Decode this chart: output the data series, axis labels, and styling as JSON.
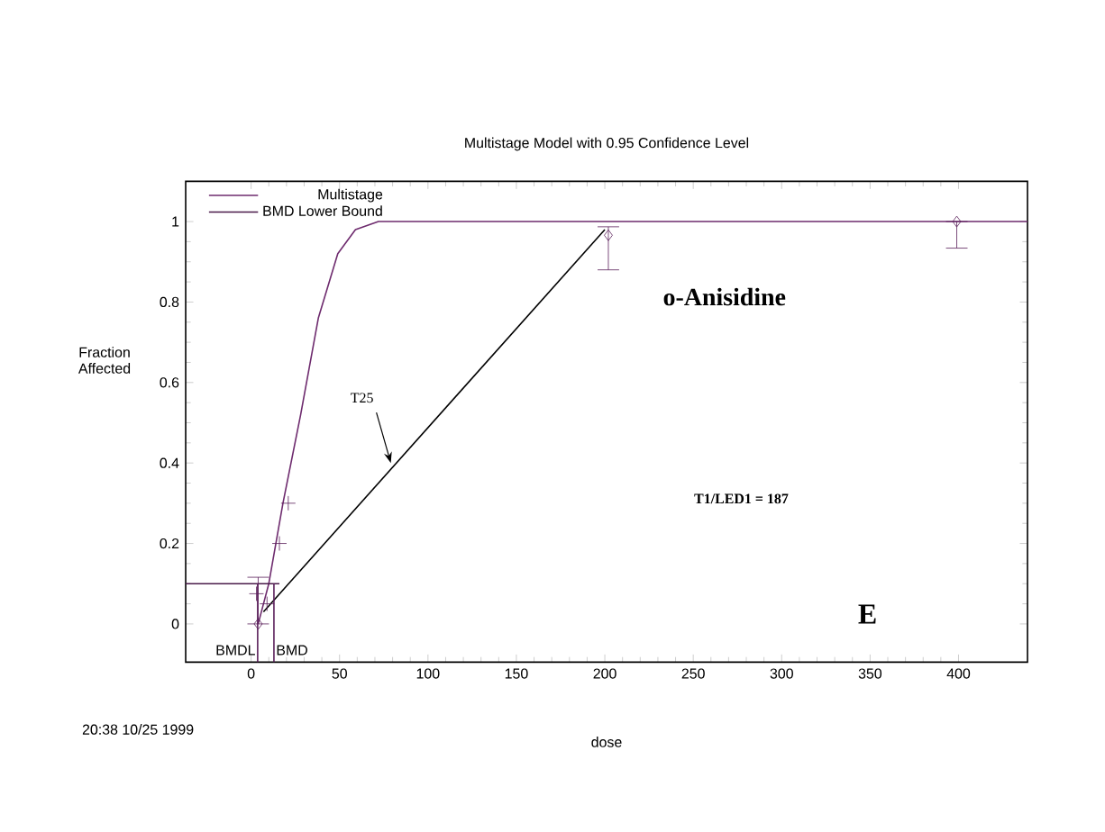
{
  "chart_data": {
    "type": "line",
    "title": "Multistage Model with 0.95 Confidence Level",
    "xlabel": "dose",
    "ylabel": "Fraction Affected",
    "xlim": [
      -37,
      439
    ],
    "ylim": [
      -0.095,
      1.1
    ],
    "xticks": [
      0,
      50,
      100,
      150,
      200,
      250,
      300,
      350,
      400
    ],
    "yticks": [
      0,
      0.2,
      0.4,
      0.6,
      0.8,
      1
    ],
    "legend": "top left",
    "grid": false,
    "series": [
      {
        "name": "Multistage",
        "color": "#6e2b6e",
        "marker": "none",
        "x": [
          4,
          10,
          18,
          28,
          38,
          49,
          59,
          72,
          100,
          439
        ],
        "values": [
          0,
          0.1,
          0.3,
          0.52,
          0.76,
          0.92,
          0.98,
          1.0,
          1.0,
          1.0
        ]
      },
      {
        "name": "BMD Lower Bound",
        "type": "line",
        "color": "#4a1a4a",
        "marker": "none",
        "x": [
          -37,
          16
        ],
        "values": [
          0.1,
          0.1
        ]
      },
      {
        "type": "scatter",
        "color": "#5a1f5a",
        "marker": "diamond",
        "x": [
          4,
          202,
          399
        ],
        "values": [
          0,
          0.966,
          1.0
        ],
        "errors": [
          [
            0,
            0.116
          ],
          [
            0.88,
            0.987
          ],
          [
            0.934,
            1.0
          ]
        ]
      },
      {
        "type": "scatter",
        "color": "#5a1f5a",
        "marker": "cross",
        "x": [
          3,
          9,
          16,
          21
        ],
        "values": [
          0.075,
          0.05,
          0.2,
          0.3
        ]
      },
      {
        "type": "line",
        "color": "#000000",
        "marker": "none",
        "x": [
          7,
          200
        ],
        "values": [
          0.03,
          0.98
        ]
      }
    ],
    "ref_lines": [
      {
        "axis": "x",
        "value": 3.7,
        "label": "BMDL",
        "color": "#5a1f5a"
      },
      {
        "axis": "x",
        "value": 12.9,
        "label": "BMD",
        "color": "#5a1f5a"
      }
    ],
    "annotations": [
      {
        "text": "T25",
        "x": 79,
        "y": 0.4
      },
      "o-Anisidine",
      "T1/LED1 = 187",
      "E",
      "20:38 10/25 1999"
    ]
  }
}
